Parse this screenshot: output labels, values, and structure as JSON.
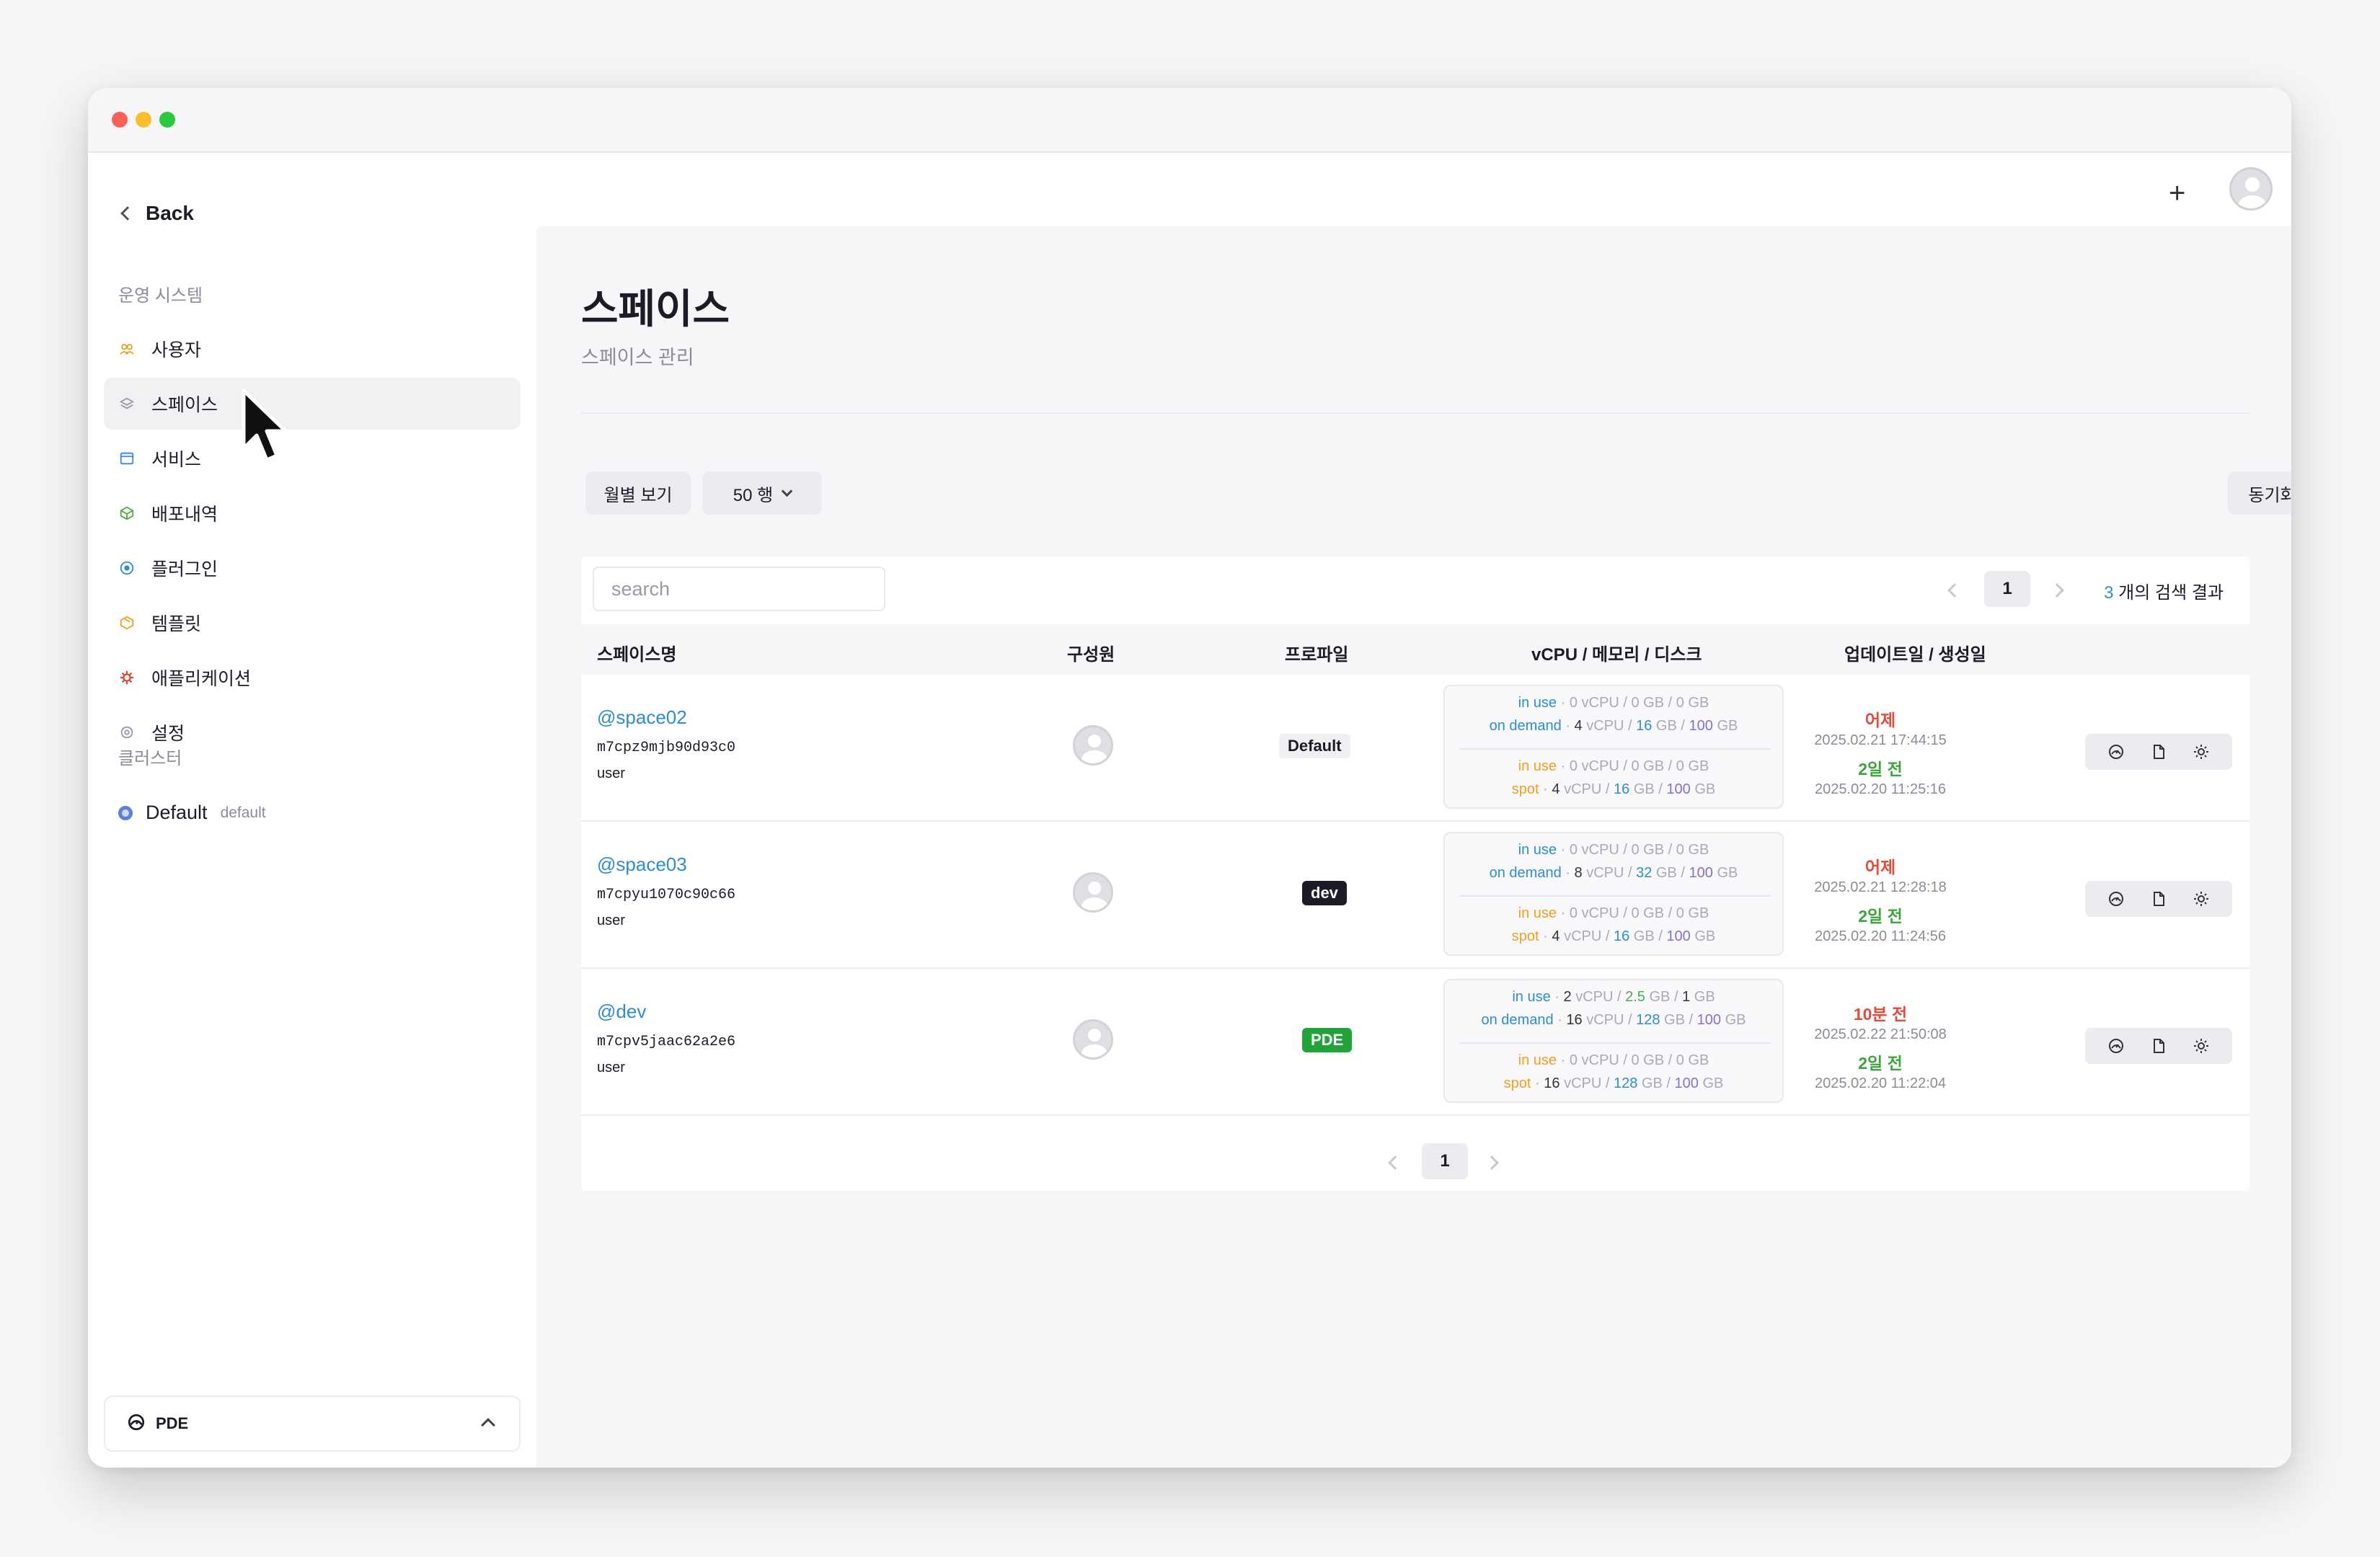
{
  "sidebar": {
    "back_label": "Back",
    "section_title": "운영 시스템",
    "items": [
      {
        "label": "사용자",
        "icon": "users-icon",
        "color": "#f0a020"
      },
      {
        "label": "스페이스",
        "icon": "layers-icon",
        "color": "#9a9aa6",
        "active": true
      },
      {
        "label": "서비스",
        "icon": "window-icon",
        "color": "#3b82f6"
      },
      {
        "label": "배포내역",
        "icon": "box-icon",
        "color": "#4cae4c"
      },
      {
        "label": "플러그인",
        "icon": "plug-icon",
        "color": "#2d8ecf"
      },
      {
        "label": "템플릿",
        "icon": "package-icon",
        "color": "#f0a020"
      },
      {
        "label": "애플리케이션",
        "icon": "gear-cluster-icon",
        "color": "#e24b3b"
      },
      {
        "label": "설정",
        "icon": "settings-icon",
        "color": "#9a9aa6"
      }
    ],
    "cluster_title": "클러스터",
    "cluster": {
      "name": "Default",
      "tag": "default"
    },
    "footer_label": "PDE"
  },
  "header": {
    "plus_icon": "plus-icon",
    "avatar": "user-avatar"
  },
  "page": {
    "title": "스페이스",
    "subtitle": "스페이스 관리",
    "monthly_button": "월별 보기",
    "rows_select": "50 행",
    "sync_button": "동기화"
  },
  "table": {
    "search_placeholder": "search",
    "current_page": "1",
    "result_count": "3",
    "result_suffix": "개의 검색 결과",
    "headers": {
      "name": "스페이스명",
      "members": "구성원",
      "profile": "프로파일",
      "resources": "vCPU / 메모리 / 디스크",
      "dates": "업데이트일 / 생성일"
    },
    "rows": [
      {
        "name": "@space02",
        "id": "m7cpz9mjb90d93c0",
        "user": "user",
        "profile": "Default",
        "profile_style": "def",
        "ondemand_use": {
          "cpu": "0",
          "mem": "0",
          "disk": "0"
        },
        "ondemand": {
          "cpu": "4",
          "mem": "16",
          "disk": "100"
        },
        "spot_use": {
          "cpu": "0",
          "mem": "0",
          "disk": "0"
        },
        "spot": {
          "cpu": "4",
          "mem": "16",
          "disk": "100"
        },
        "updated_rel": "어제",
        "updated": "2025.02.21 17:44:15",
        "created_rel": "2일 전",
        "created": "2025.02.20 11:25:16"
      },
      {
        "name": "@space03",
        "id": "m7cpyu1070c90c66",
        "user": "user",
        "profile": "dev",
        "profile_style": "dev",
        "ondemand_use": {
          "cpu": "0",
          "mem": "0",
          "disk": "0"
        },
        "ondemand": {
          "cpu": "8",
          "mem": "32",
          "disk": "100"
        },
        "spot_use": {
          "cpu": "0",
          "mem": "0",
          "disk": "0"
        },
        "spot": {
          "cpu": "4",
          "mem": "16",
          "disk": "100"
        },
        "updated_rel": "어제",
        "updated": "2025.02.21 12:28:18",
        "created_rel": "2일 전",
        "created": "2025.02.20 11:24:56"
      },
      {
        "name": "@dev",
        "id": "m7cpv5jaac62a2e6",
        "user": "user",
        "profile": "PDE",
        "profile_style": "pde",
        "ondemand_use": {
          "cpu": "2",
          "mem": "2.5",
          "disk": "1"
        },
        "ondemand": {
          "cpu": "16",
          "mem": "128",
          "disk": "100"
        },
        "spot_use": {
          "cpu": "0",
          "mem": "0",
          "disk": "0"
        },
        "spot": {
          "cpu": "16",
          "mem": "128",
          "disk": "100"
        },
        "updated_rel": "10분 전",
        "updated": "2025.02.22 21:50:08",
        "created_rel": "2일 전",
        "created": "2025.02.20 11:22:04"
      }
    ],
    "labels": {
      "in_use": "in use",
      "on_demand": "on demand",
      "spot": "spot",
      "cpu_unit": "vCPU",
      "gb_unit": "GB",
      "dot": "·",
      "slash": "/"
    },
    "action_icons": [
      "dashboard-icon",
      "document-icon",
      "settings-icon"
    ]
  }
}
